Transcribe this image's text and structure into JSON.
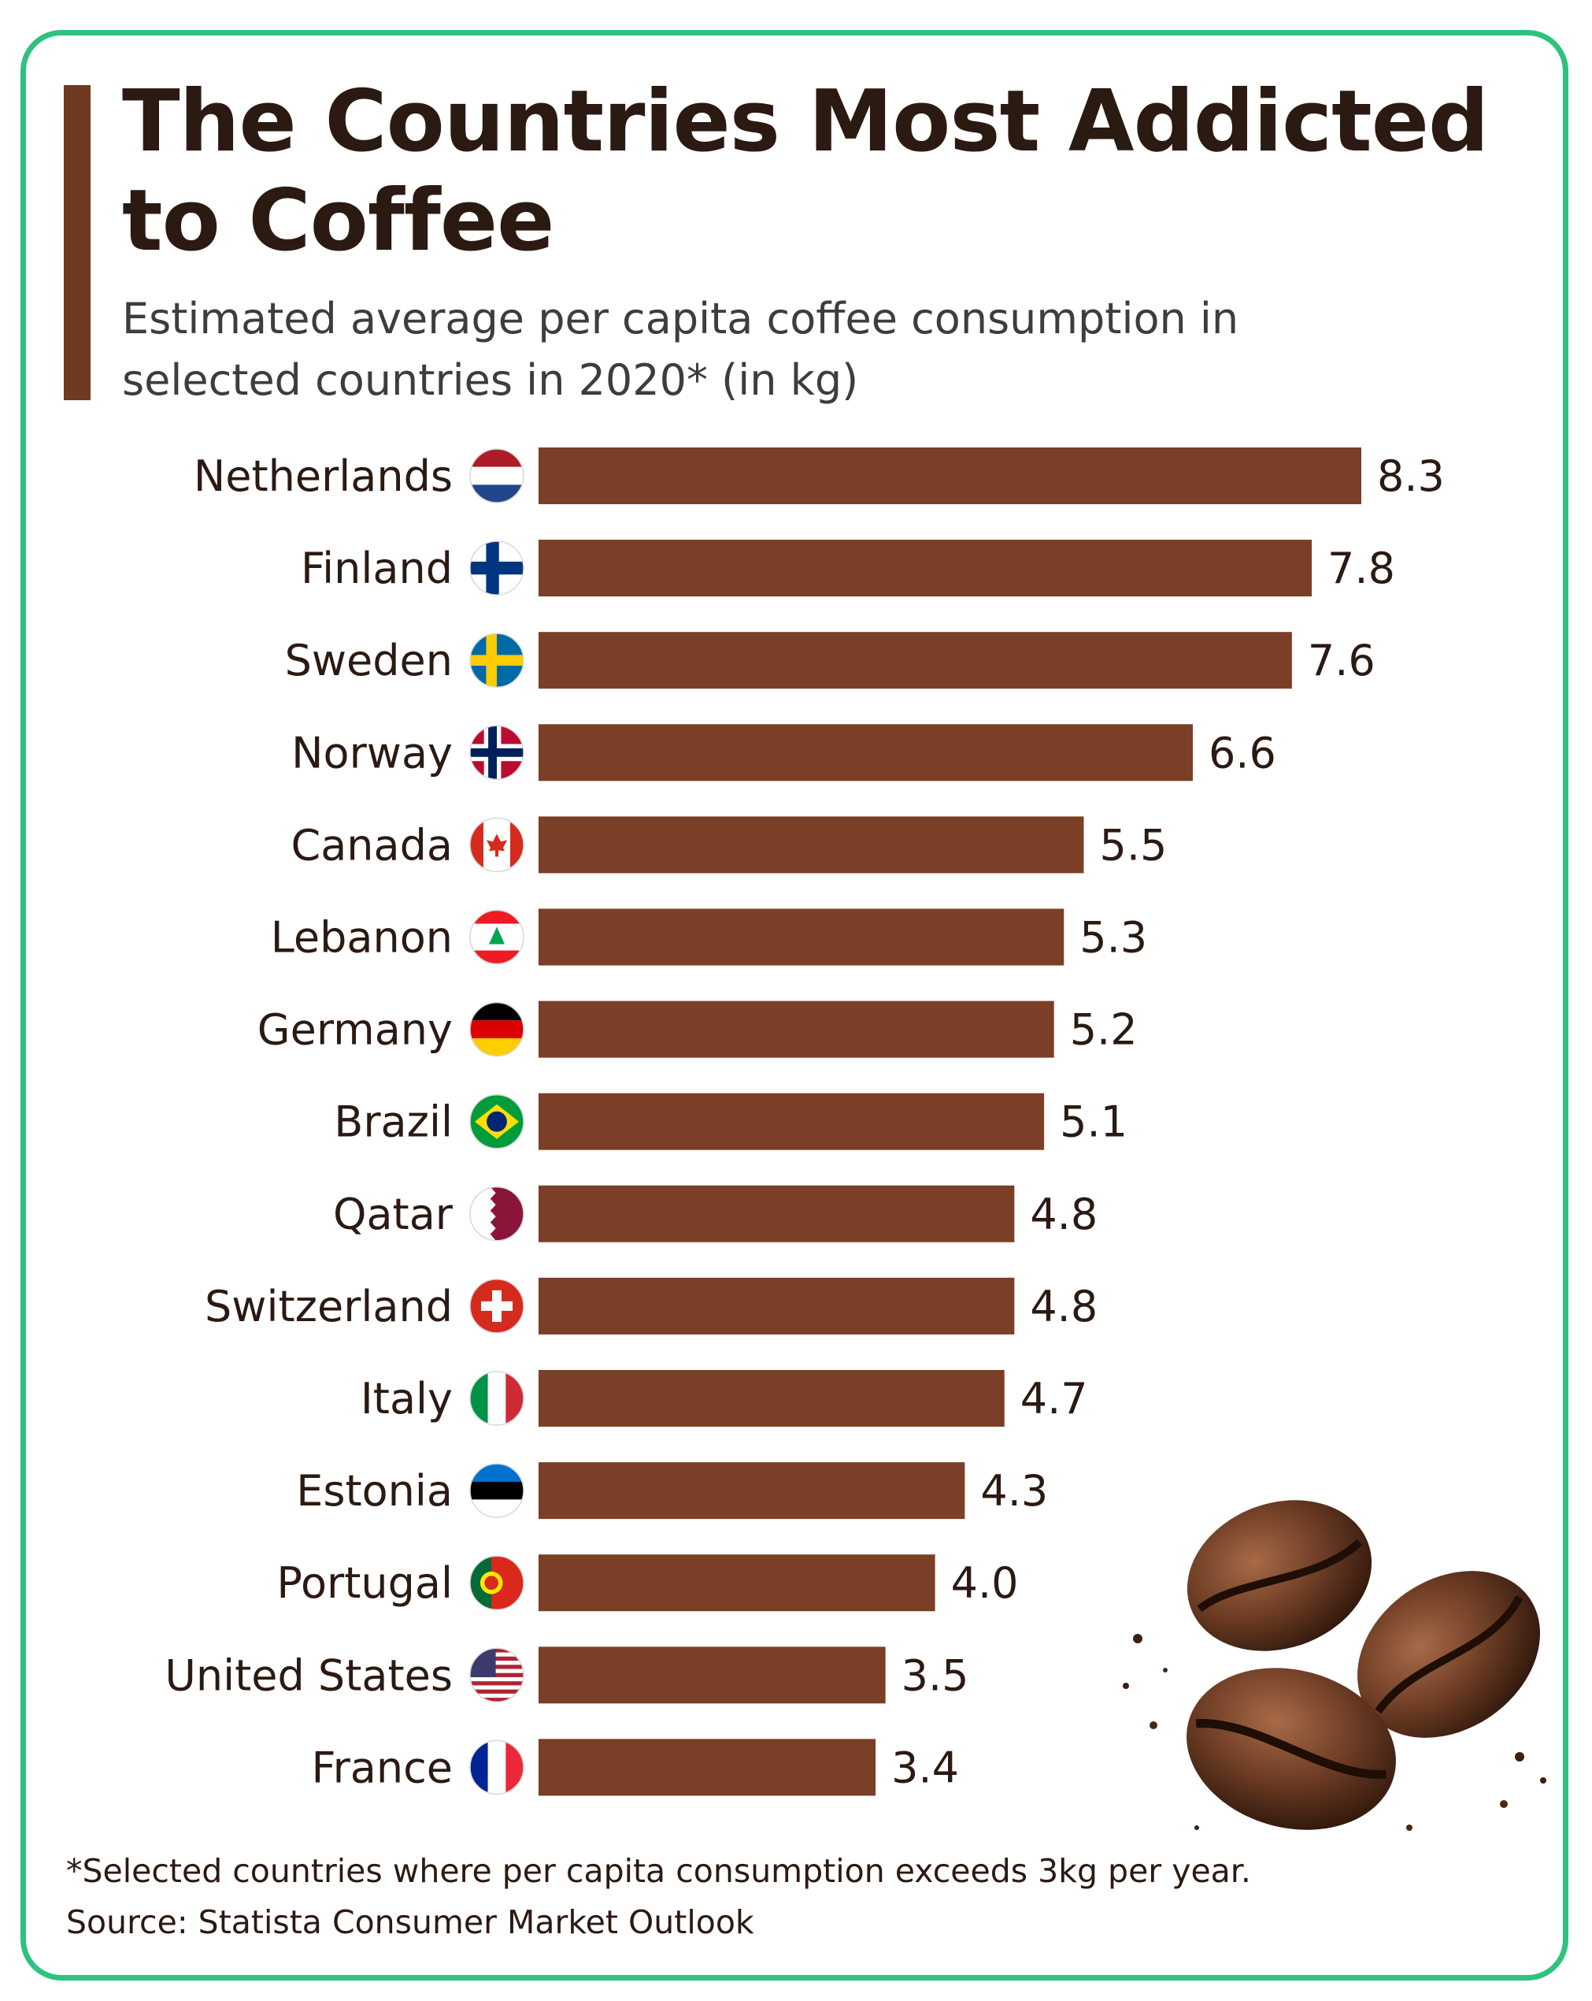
{
  "title": "The Countries Most Addicted to Coffee",
  "subtitle": "Estimated average per capita coffee consumption in selected countries in 2020* (in kg)",
  "footnote": "*Selected countries where per capita consumption exceeds 3kg per year.",
  "source": "Source: Statista Consumer Market Outlook",
  "colors": {
    "bar": "#7a3f26",
    "accent": "#6e3a22",
    "frame": "#2ec27e"
  },
  "chart_data": {
    "type": "bar",
    "orientation": "horizontal",
    "title": "The Countries Most Addicted to Coffee",
    "subtitle": "Estimated average per capita coffee consumption in selected countries in 2020* (in kg)",
    "categories": [
      "Netherlands",
      "Finland",
      "Sweden",
      "Norway",
      "Canada",
      "Lebanon",
      "Germany",
      "Brazil",
      "Qatar",
      "Switzerland",
      "Italy",
      "Estonia",
      "Portugal",
      "United States",
      "France"
    ],
    "values": [
      8.3,
      7.8,
      7.6,
      6.6,
      5.5,
      5.3,
      5.2,
      5.1,
      4.8,
      4.8,
      4.7,
      4.3,
      4.0,
      3.5,
      3.4
    ],
    "value_labels": [
      "8.3",
      "7.8",
      "7.6",
      "6.6",
      "5.5",
      "5.3",
      "5.2",
      "5.1",
      "4.8",
      "4.8",
      "4.7",
      "4.3",
      "4.0",
      "3.5",
      "3.4"
    ],
    "flag_icons": [
      "netherlands-flag-icon",
      "finland-flag-icon",
      "sweden-flag-icon",
      "norway-flag-icon",
      "canada-flag-icon",
      "lebanon-flag-icon",
      "germany-flag-icon",
      "brazil-flag-icon",
      "qatar-flag-icon",
      "switzerland-flag-icon",
      "italy-flag-icon",
      "estonia-flag-icon",
      "portugal-flag-icon",
      "united-states-flag-icon",
      "france-flag-icon"
    ],
    "xlim": [
      0,
      8.3
    ],
    "grid": false,
    "legend": "none"
  },
  "decoration": {
    "icon": "coffee-beans-icon"
  }
}
